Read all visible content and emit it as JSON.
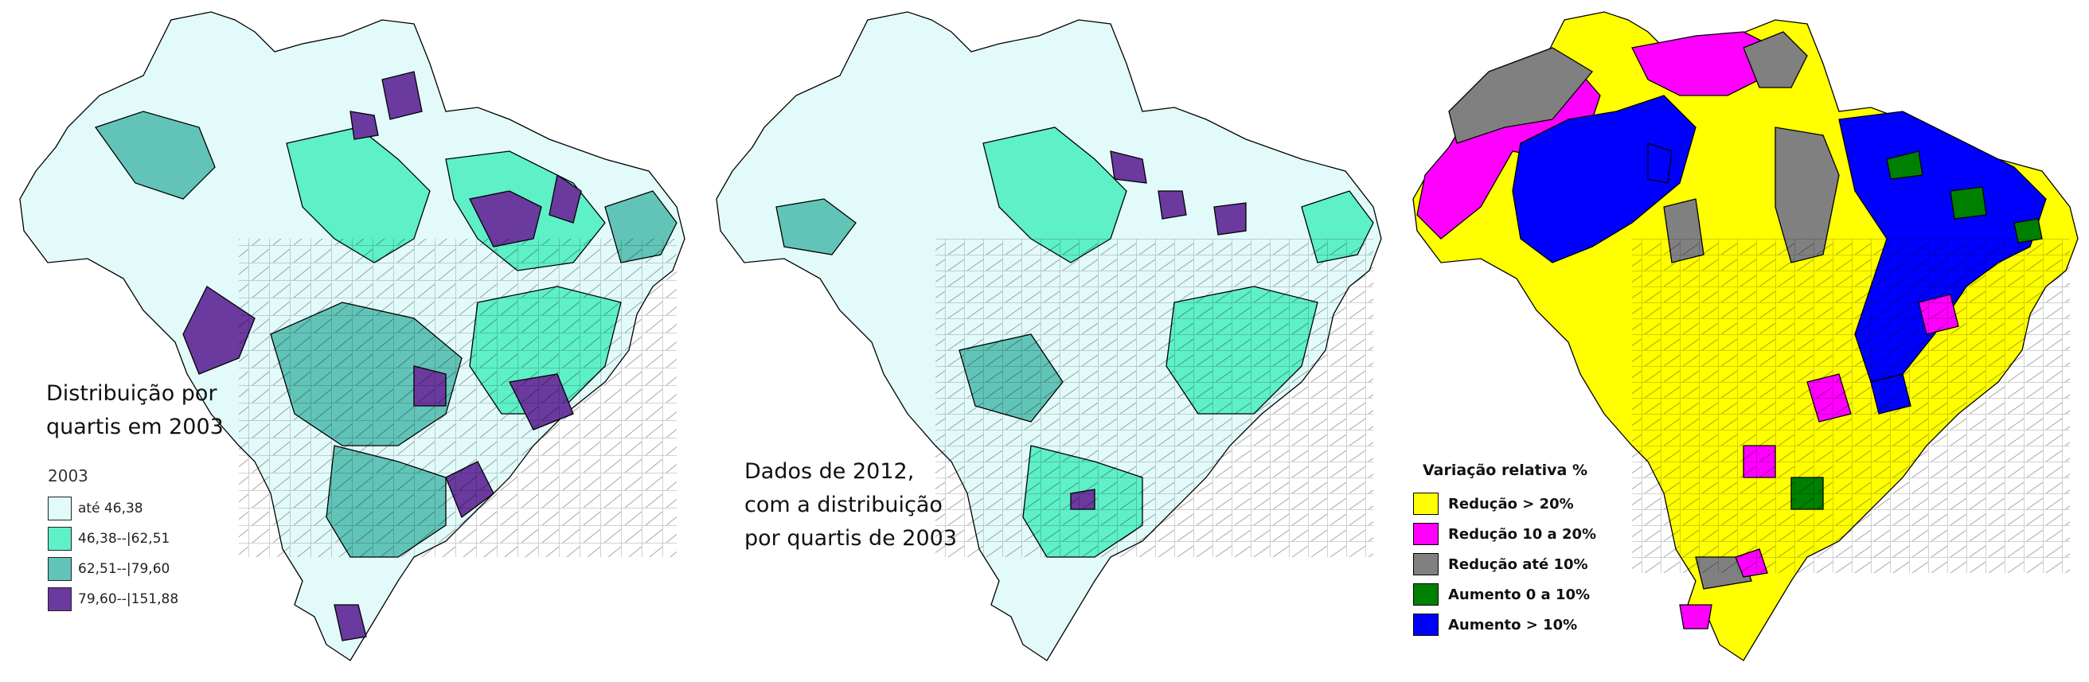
{
  "panels": [
    {
      "caption": "Distribuição por\nquartis em 2003",
      "legend": {
        "title": "2003",
        "items": [
          {
            "label": "até 46,38",
            "color": "#e2fbfa"
          },
          {
            "label": "46,38--|62,51",
            "color": "#5ef0c7"
          },
          {
            "label": "62,51--|79,60",
            "color": "#62c4b8"
          },
          {
            "label": "79,60--|151,88",
            "color": "#6a3a9e"
          }
        ]
      }
    },
    {
      "caption": "Dados de 2012,\ncom a distribuição\npor quartis de 2003"
    },
    {
      "legend": {
        "title": "Variação relativa %",
        "items": [
          {
            "label": "Redução > 20%",
            "color": "#ffff00"
          },
          {
            "label": "Redução 10 a 20%",
            "color": "#ff00ff"
          },
          {
            "label": "Redução até 10%",
            "color": "#808080"
          },
          {
            "label": "Aumento 0 a 10%",
            "color": "#008000"
          },
          {
            "label": "Aumento > 10%",
            "color": "#0000ff"
          }
        ]
      }
    }
  ]
}
